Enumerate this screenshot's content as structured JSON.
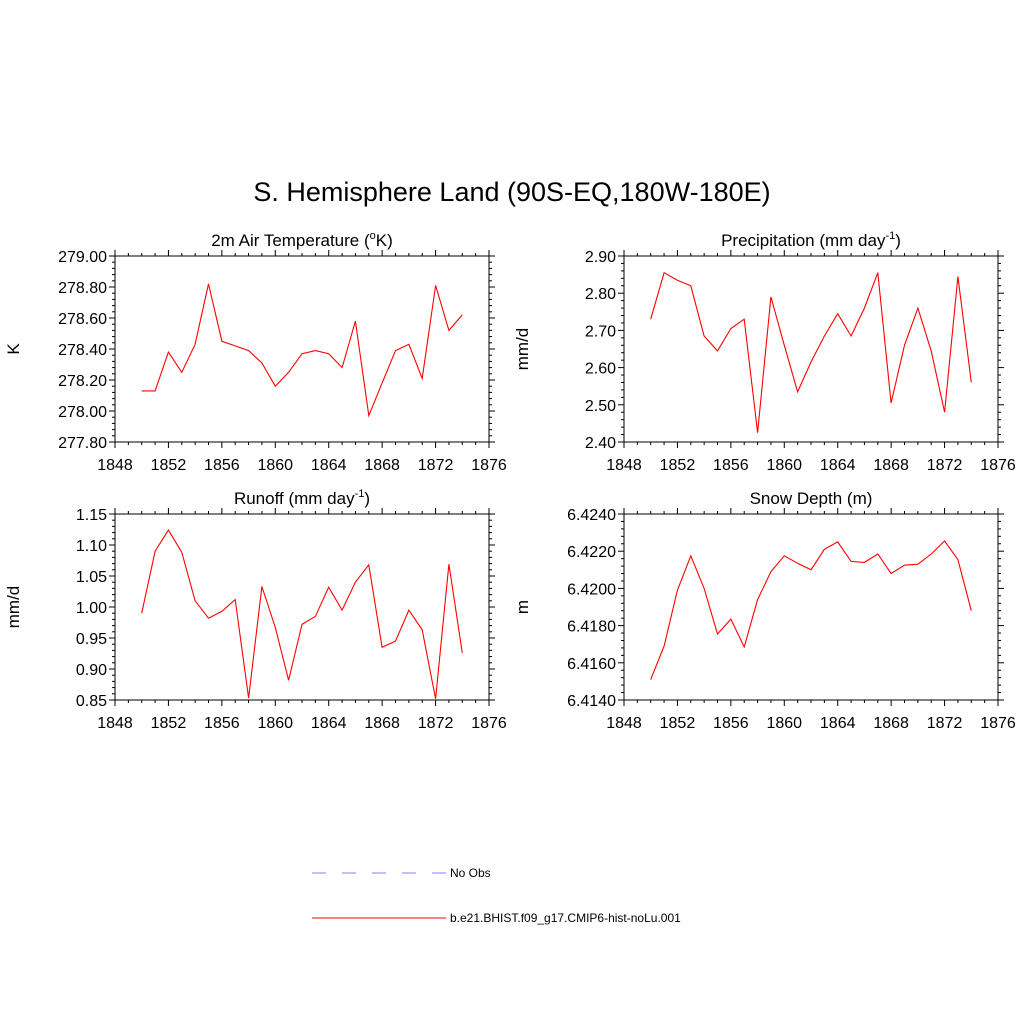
{
  "title": "S. Hemisphere Land (90S-EQ,180W-180E)",
  "legend": [
    {
      "label": "No Obs",
      "color": "#9999ff",
      "dash": true
    },
    {
      "label": "b.e21.BHIST.f09_g17.CMIP6-hist-noLu.001",
      "color": "#ff0000",
      "dash": false
    }
  ],
  "chart_data": [
    {
      "type": "line",
      "title_main": "2m Air Temperature (",
      "title_sup": "o",
      "title_end": "K)",
      "ylabel": "K",
      "xlim": [
        1848,
        1876
      ],
      "xticks": [
        1848,
        1852,
        1856,
        1860,
        1864,
        1868,
        1872,
        1876
      ],
      "ylim": [
        277.8,
        279.0
      ],
      "yticks": [
        277.8,
        278.0,
        278.2,
        278.4,
        278.6,
        278.8,
        279.0
      ],
      "ytick_labels": [
        "277.80",
        "278.00",
        "278.20",
        "278.40",
        "278.60",
        "278.80",
        "279.00"
      ],
      "series": [
        {
          "color": "#ff0000",
          "x": [
            1850,
            1851,
            1852,
            1853,
            1854,
            1855,
            1856,
            1857,
            1858,
            1859,
            1860,
            1861,
            1862,
            1863,
            1864,
            1865,
            1866,
            1867,
            1868,
            1869,
            1870,
            1871,
            1872,
            1873,
            1874
          ],
          "values": [
            278.13,
            278.13,
            278.38,
            278.25,
            278.43,
            278.82,
            278.45,
            278.42,
            278.39,
            278.31,
            278.16,
            278.25,
            278.37,
            278.39,
            278.37,
            278.28,
            278.58,
            277.97,
            278.18,
            278.39,
            278.43,
            278.21,
            278.81,
            278.52,
            278.62
          ]
        }
      ]
    },
    {
      "type": "line",
      "title_main": "Precipitation (mm day",
      "title_sup": "-1",
      "title_end": ")",
      "ylabel": "mm/d",
      "xlim": [
        1848,
        1876
      ],
      "xticks": [
        1848,
        1852,
        1856,
        1860,
        1864,
        1868,
        1872,
        1876
      ],
      "ylim": [
        2.4,
        2.9
      ],
      "yticks": [
        2.4,
        2.5,
        2.6,
        2.7,
        2.8,
        2.9
      ],
      "ytick_labels": [
        "2.40",
        "2.50",
        "2.60",
        "2.70",
        "2.80",
        "2.90"
      ],
      "series": [
        {
          "color": "#ff0000",
          "x": [
            1850,
            1851,
            1852,
            1853,
            1854,
            1855,
            1856,
            1857,
            1858,
            1859,
            1860,
            1861,
            1862,
            1863,
            1864,
            1865,
            1866,
            1867,
            1868,
            1869,
            1870,
            1871,
            1872,
            1873,
            1874
          ],
          "values": [
            2.73,
            2.855,
            2.835,
            2.82,
            2.685,
            2.645,
            2.705,
            2.73,
            2.425,
            2.79,
            2.66,
            2.535,
            2.615,
            2.685,
            2.745,
            2.685,
            2.76,
            2.855,
            2.505,
            2.66,
            2.76,
            2.645,
            2.48,
            2.845,
            2.56
          ]
        }
      ]
    },
    {
      "type": "line",
      "title_main": "Runoff (mm day",
      "title_sup": "-1",
      "title_end": ")",
      "ylabel": "mm/d",
      "xlim": [
        1848,
        1876
      ],
      "xticks": [
        1848,
        1852,
        1856,
        1860,
        1864,
        1868,
        1872,
        1876
      ],
      "ylim": [
        0.85,
        1.15
      ],
      "yticks": [
        0.85,
        0.9,
        0.95,
        1.0,
        1.05,
        1.1,
        1.15
      ],
      "ytick_labels": [
        "0.85",
        "0.90",
        "0.95",
        "1.00",
        "1.05",
        "1.10",
        "1.15"
      ],
      "series": [
        {
          "color": "#ff0000",
          "x": [
            1850,
            1851,
            1852,
            1853,
            1854,
            1855,
            1856,
            1857,
            1858,
            1859,
            1860,
            1861,
            1862,
            1863,
            1864,
            1865,
            1866,
            1867,
            1868,
            1869,
            1870,
            1871,
            1872,
            1873,
            1874
          ],
          "values": [
            0.99,
            1.09,
            1.124,
            1.088,
            1.01,
            0.982,
            0.993,
            1.012,
            0.853,
            1.033,
            0.967,
            0.882,
            0.972,
            0.985,
            1.032,
            0.995,
            1.04,
            1.068,
            0.935,
            0.945,
            0.995,
            0.963,
            0.852,
            1.069,
            0.926
          ]
        }
      ]
    },
    {
      "type": "line",
      "title_main": "Snow Depth (m)",
      "title_sup": "",
      "title_end": "",
      "ylabel": "m",
      "xlim": [
        1848,
        1876
      ],
      "xticks": [
        1848,
        1852,
        1856,
        1860,
        1864,
        1868,
        1872,
        1876
      ],
      "ylim": [
        6.414,
        6.424
      ],
      "yticks": [
        6.414,
        6.416,
        6.418,
        6.42,
        6.422,
        6.424
      ],
      "ytick_labels": [
        "6.4140",
        "6.4160",
        "6.4180",
        "6.4200",
        "6.4220",
        "6.4240"
      ],
      "series": [
        {
          "color": "#ff0000",
          "x": [
            1850,
            1851,
            1852,
            1853,
            1854,
            1855,
            1856,
            1857,
            1858,
            1859,
            1860,
            1861,
            1862,
            1863,
            1864,
            1865,
            1866,
            1867,
            1868,
            1869,
            1870,
            1871,
            1872,
            1873,
            1874
          ],
          "values": [
            6.4151,
            6.4169,
            6.4199,
            6.42175,
            6.42,
            6.41755,
            6.41835,
            6.41685,
            6.4194,
            6.4209,
            6.42175,
            6.42135,
            6.421,
            6.4221,
            6.4225,
            6.42145,
            6.4214,
            6.42185,
            6.4208,
            6.42125,
            6.4213,
            6.42185,
            6.42255,
            6.42155,
            6.4188
          ]
        }
      ]
    }
  ]
}
